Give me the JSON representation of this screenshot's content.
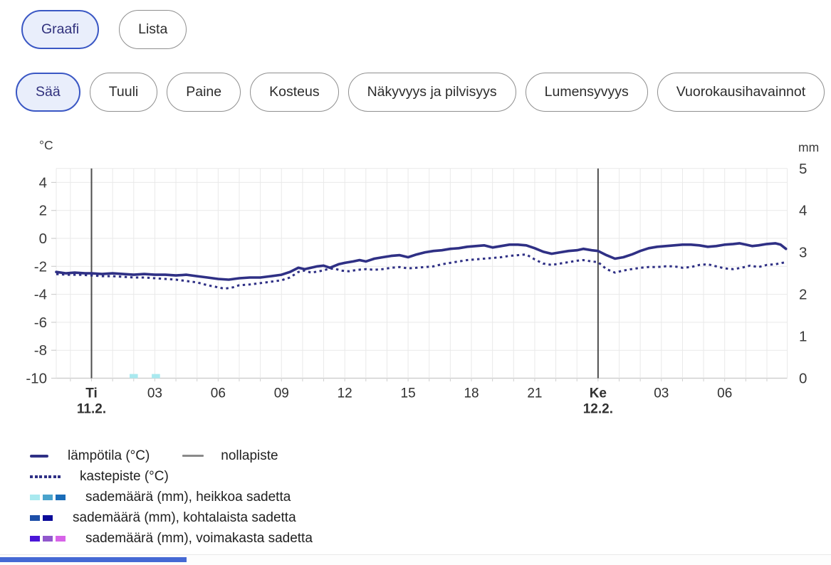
{
  "view_tabs": [
    {
      "label": "Graafi",
      "active": true
    },
    {
      "label": "Lista",
      "active": false
    }
  ],
  "filter_tabs": [
    {
      "label": "Sää",
      "active": true
    },
    {
      "label": "Tuuli",
      "active": false
    },
    {
      "label": "Paine",
      "active": false
    },
    {
      "label": "Kosteus",
      "active": false
    },
    {
      "label": "Näkyvyys ja pilvisyys",
      "active": false
    },
    {
      "label": "Lumensyvyys",
      "active": false
    },
    {
      "label": "Vuorokausihavainnot",
      "active": false
    }
  ],
  "chart_data": {
    "type": "line",
    "title": "",
    "left_axis": {
      "unit": "°C",
      "min": -10,
      "max": 5,
      "ticks": [
        4,
        2,
        0,
        -2,
        -4,
        -6,
        -8,
        -10
      ]
    },
    "right_axis": {
      "unit": "mm",
      "min": 0,
      "max": 5,
      "ticks": [
        5,
        4,
        3,
        2,
        1,
        0
      ]
    },
    "x_range_hours": [
      -1.67,
      32.9
    ],
    "x_ticks": [
      {
        "t": 0,
        "label": "Ti",
        "date": "11.2.",
        "bold": true
      },
      {
        "t": 3,
        "label": "03"
      },
      {
        "t": 6,
        "label": "06"
      },
      {
        "t": 9,
        "label": "09"
      },
      {
        "t": 12,
        "label": "12"
      },
      {
        "t": 15,
        "label": "15"
      },
      {
        "t": 18,
        "label": "18"
      },
      {
        "t": 21,
        "label": "21"
      },
      {
        "t": 24,
        "label": "Ke",
        "date": "12.2.",
        "bold": true
      },
      {
        "t": 27,
        "label": "03"
      },
      {
        "t": 30,
        "label": "06"
      }
    ],
    "day_boundary_lines_t": [
      0,
      24
    ],
    "grid": true,
    "series": [
      {
        "name": "lämpötila (°C)",
        "style": "solid",
        "color": "#2f3085",
        "points": [
          [
            -1.67,
            -2.4
          ],
          [
            -1.2,
            -2.5
          ],
          [
            -0.8,
            -2.45
          ],
          [
            -0.3,
            -2.5
          ],
          [
            0,
            -2.5
          ],
          [
            0.5,
            -2.55
          ],
          [
            1,
            -2.5
          ],
          [
            1.5,
            -2.55
          ],
          [
            2,
            -2.6
          ],
          [
            2.5,
            -2.55
          ],
          [
            3,
            -2.6
          ],
          [
            3.5,
            -2.6
          ],
          [
            4,
            -2.65
          ],
          [
            4.5,
            -2.6
          ],
          [
            5,
            -2.7
          ],
          [
            5.5,
            -2.8
          ],
          [
            6,
            -2.9
          ],
          [
            6.5,
            -2.95
          ],
          [
            7,
            -2.85
          ],
          [
            7.5,
            -2.8
          ],
          [
            8,
            -2.8
          ],
          [
            8.5,
            -2.7
          ],
          [
            9,
            -2.6
          ],
          [
            9.4,
            -2.4
          ],
          [
            9.8,
            -2.1
          ],
          [
            10.1,
            -2.2
          ],
          [
            10.4,
            -2.1
          ],
          [
            10.7,
            -2.0
          ],
          [
            11,
            -1.95
          ],
          [
            11.3,
            -2.1
          ],
          [
            11.7,
            -1.85
          ],
          [
            12,
            -1.75
          ],
          [
            12.4,
            -1.65
          ],
          [
            12.7,
            -1.55
          ],
          [
            13,
            -1.65
          ],
          [
            13.4,
            -1.45
          ],
          [
            13.8,
            -1.35
          ],
          [
            14.2,
            -1.25
          ],
          [
            14.6,
            -1.2
          ],
          [
            15,
            -1.35
          ],
          [
            15.4,
            -1.15
          ],
          [
            15.8,
            -1.0
          ],
          [
            16.2,
            -0.9
          ],
          [
            16.6,
            -0.85
          ],
          [
            17,
            -0.75
          ],
          [
            17.4,
            -0.7
          ],
          [
            17.8,
            -0.6
          ],
          [
            18.2,
            -0.55
          ],
          [
            18.6,
            -0.5
          ],
          [
            19,
            -0.65
          ],
          [
            19.4,
            -0.55
          ],
          [
            19.8,
            -0.45
          ],
          [
            20.2,
            -0.45
          ],
          [
            20.6,
            -0.5
          ],
          [
            21,
            -0.7
          ],
          [
            21.4,
            -0.95
          ],
          [
            21.8,
            -1.1
          ],
          [
            22.2,
            -1.0
          ],
          [
            22.6,
            -0.9
          ],
          [
            23,
            -0.85
          ],
          [
            23.3,
            -0.75
          ],
          [
            23.7,
            -0.85
          ],
          [
            24,
            -0.9
          ],
          [
            24.4,
            -1.2
          ],
          [
            24.8,
            -1.45
          ],
          [
            25.2,
            -1.35
          ],
          [
            25.6,
            -1.15
          ],
          [
            26,
            -0.9
          ],
          [
            26.4,
            -0.7
          ],
          [
            26.8,
            -0.6
          ],
          [
            27.2,
            -0.55
          ],
          [
            27.6,
            -0.5
          ],
          [
            28,
            -0.45
          ],
          [
            28.4,
            -0.45
          ],
          [
            28.8,
            -0.5
          ],
          [
            29.2,
            -0.6
          ],
          [
            29.6,
            -0.55
          ],
          [
            30,
            -0.45
          ],
          [
            30.4,
            -0.4
          ],
          [
            30.7,
            -0.35
          ],
          [
            31,
            -0.45
          ],
          [
            31.3,
            -0.55
          ],
          [
            31.6,
            -0.5
          ],
          [
            32,
            -0.4
          ],
          [
            32.4,
            -0.35
          ],
          [
            32.65,
            -0.45
          ],
          [
            32.9,
            -0.75
          ]
        ]
      },
      {
        "name": "kastepiste (°C)",
        "style": "dotted",
        "color": "#2f3085",
        "points": [
          [
            -1.67,
            -2.55
          ],
          [
            -1.2,
            -2.6
          ],
          [
            -0.6,
            -2.6
          ],
          [
            0,
            -2.65
          ],
          [
            0.5,
            -2.7
          ],
          [
            1,
            -2.7
          ],
          [
            1.5,
            -2.75
          ],
          [
            2,
            -2.8
          ],
          [
            2.5,
            -2.8
          ],
          [
            3,
            -2.85
          ],
          [
            3.5,
            -2.9
          ],
          [
            4,
            -2.95
          ],
          [
            4.5,
            -3.05
          ],
          [
            5,
            -3.15
          ],
          [
            5.5,
            -3.35
          ],
          [
            6,
            -3.5
          ],
          [
            6.3,
            -3.6
          ],
          [
            6.7,
            -3.5
          ],
          [
            7,
            -3.35
          ],
          [
            7.5,
            -3.3
          ],
          [
            8,
            -3.2
          ],
          [
            8.5,
            -3.1
          ],
          [
            9,
            -3.0
          ],
          [
            9.4,
            -2.8
          ],
          [
            9.8,
            -2.4
          ],
          [
            10.1,
            -2.3
          ],
          [
            10.4,
            -2.45
          ],
          [
            10.8,
            -2.35
          ],
          [
            11.2,
            -2.2
          ],
          [
            11.5,
            -2.15
          ],
          [
            11.8,
            -2.3
          ],
          [
            12.2,
            -2.35
          ],
          [
            12.6,
            -2.25
          ],
          [
            13,
            -2.2
          ],
          [
            13.4,
            -2.25
          ],
          [
            13.8,
            -2.2
          ],
          [
            14.2,
            -2.1
          ],
          [
            14.6,
            -2.05
          ],
          [
            15,
            -2.15
          ],
          [
            15.4,
            -2.1
          ],
          [
            15.8,
            -2.05
          ],
          [
            16.2,
            -2.0
          ],
          [
            16.6,
            -1.85
          ],
          [
            17,
            -1.75
          ],
          [
            17.4,
            -1.65
          ],
          [
            17.8,
            -1.55
          ],
          [
            18.2,
            -1.5
          ],
          [
            18.6,
            -1.45
          ],
          [
            19,
            -1.4
          ],
          [
            19.4,
            -1.35
          ],
          [
            19.8,
            -1.25
          ],
          [
            20.2,
            -1.2
          ],
          [
            20.6,
            -1.15
          ],
          [
            21,
            -1.5
          ],
          [
            21.4,
            -1.8
          ],
          [
            21.8,
            -1.9
          ],
          [
            22.2,
            -1.8
          ],
          [
            22.6,
            -1.7
          ],
          [
            23,
            -1.6
          ],
          [
            23.3,
            -1.55
          ],
          [
            23.7,
            -1.65
          ],
          [
            24,
            -1.7
          ],
          [
            24.4,
            -2.2
          ],
          [
            24.8,
            -2.45
          ],
          [
            25.2,
            -2.3
          ],
          [
            25.6,
            -2.2
          ],
          [
            26,
            -2.1
          ],
          [
            26.4,
            -2.05
          ],
          [
            26.8,
            -2.05
          ],
          [
            27.2,
            -2.0
          ],
          [
            27.6,
            -2.0
          ],
          [
            28,
            -2.1
          ],
          [
            28.4,
            -2.05
          ],
          [
            28.8,
            -1.9
          ],
          [
            29.2,
            -1.85
          ],
          [
            29.6,
            -2.0
          ],
          [
            30,
            -2.15
          ],
          [
            30.4,
            -2.2
          ],
          [
            30.8,
            -2.1
          ],
          [
            31.2,
            -1.95
          ],
          [
            31.6,
            -2.05
          ],
          [
            32,
            -1.9
          ],
          [
            32.4,
            -1.85
          ],
          [
            32.9,
            -1.7
          ]
        ]
      }
    ],
    "precipitation_bars": [
      {
        "t": 2.0,
        "mm": 0.1,
        "intensity": "heikkoa sadetta"
      },
      {
        "t": 3.05,
        "mm": 0.1,
        "intensity": "heikkoa sadetta"
      }
    ]
  },
  "legend": {
    "rows": [
      {
        "items": [
          {
            "swatch": "line-solid",
            "label": "lämpötila (°C)",
            "pad": "a"
          },
          {
            "swatch": "line-gray",
            "label": "nollapiste",
            "pad": "b",
            "offset": true
          }
        ]
      },
      {
        "items": [
          {
            "swatch": "line-dotted",
            "label": "kastepiste (°C)",
            "pad": "a"
          }
        ]
      },
      {
        "items": [
          {
            "swatch": "dash-light",
            "label": "sademäärä (mm), heikkoa sadetta",
            "pad": "c"
          }
        ]
      },
      {
        "items": [
          {
            "swatch": "dash-moderate",
            "label": "sademäärä (mm), kohtalaista sadetta",
            "pad": "c"
          }
        ]
      },
      {
        "items": [
          {
            "swatch": "dash-heavy",
            "label": "sademäärä (mm), voimakasta sadetta",
            "pad": "c"
          }
        ]
      }
    ]
  },
  "colors": {
    "accent_border": "#3a57c4",
    "accent_bg": "#e9eefb",
    "accent_text": "#30307c",
    "line_navy": "#2f3085",
    "zero_line_gray": "#8a8a8a",
    "grid_light": "#e9e9e9",
    "axis_bottom": "#cfcfcf",
    "day_line_dark": "#4d4d4d",
    "tick_text": "#3a3a3a",
    "precip_light": [
      "#a9e9ef",
      "#4aa3cc",
      "#1a6cb8"
    ],
    "precip_moderate": [
      "#1d4fa8",
      "#0b0b99"
    ],
    "precip_heavy": [
      "#4b16d8",
      "#9158cd",
      "#d763e8"
    ],
    "scrollbar_thumb": "#4569d4"
  }
}
